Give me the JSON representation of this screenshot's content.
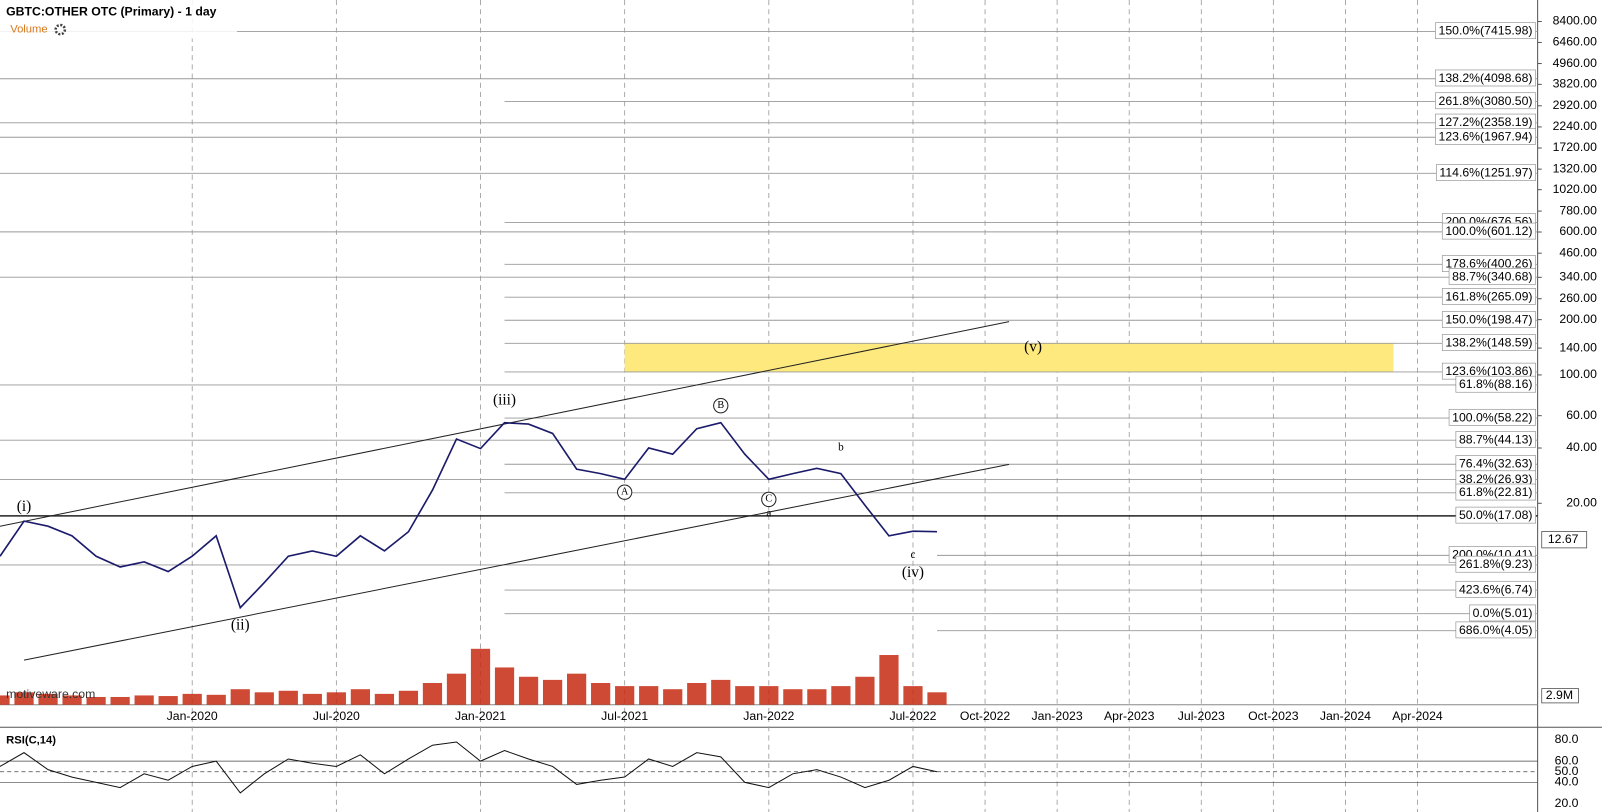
{
  "chart_data": {
    "type": "line",
    "title": "GBTC:OTHER OTC (Primary) - 1 day",
    "volume_label": "Volume",
    "watermark": "motiveware.com",
    "log_scale": true,
    "color": "#1b1b6b",
    "xlim": [
      "2019-05",
      "2024-09"
    ],
    "xticks": [
      {
        "value": "2020-01",
        "label": "Jan-2020"
      },
      {
        "value": "2020-07",
        "label": "Jul-2020"
      },
      {
        "value": "2021-01",
        "label": "Jan-2021"
      },
      {
        "value": "2021-07",
        "label": "Jul-2021"
      },
      {
        "value": "2022-01",
        "label": "Jan-2022"
      },
      {
        "value": "2022-07",
        "label": "Jul-2022"
      },
      {
        "value": "2022-10",
        "label": "Oct-2022"
      },
      {
        "value": "2023-01",
        "label": "Jan-2023"
      },
      {
        "value": "2023-04",
        "label": "Apr-2023"
      },
      {
        "value": "2023-07",
        "label": "Jul-2023"
      },
      {
        "value": "2023-10",
        "label": "Oct-2023"
      },
      {
        "value": "2024-01",
        "label": "Jan-2024"
      },
      {
        "value": "2024-04",
        "label": "Apr-2024"
      }
    ],
    "ylim": [
      1.6,
      11000
    ],
    "yticks": [
      {
        "value": 8400,
        "label": "8400.00"
      },
      {
        "value": 6460,
        "label": "6460.00"
      },
      {
        "value": 4960,
        "label": "4960.00"
      },
      {
        "value": 3820,
        "label": "3820.00"
      },
      {
        "value": 2920,
        "label": "2920.00"
      },
      {
        "value": 2240,
        "label": "2240.00"
      },
      {
        "value": 1720,
        "label": "1720.00"
      },
      {
        "value": 1320,
        "label": "1320.00"
      },
      {
        "value": 1020,
        "label": "1020.00"
      },
      {
        "value": 780,
        "label": "780.00"
      },
      {
        "value": 600,
        "label": "600.00"
      },
      {
        "value": 460,
        "label": "460.00"
      },
      {
        "value": 340,
        "label": "340.00"
      },
      {
        "value": 260,
        "label": "260.00"
      },
      {
        "value": 200,
        "label": "200.00"
      },
      {
        "value": 140,
        "label": "140.00"
      },
      {
        "value": 100,
        "label": "100.00"
      },
      {
        "value": 60,
        "label": "60.00"
      },
      {
        "value": 40,
        "label": "40.00"
      },
      {
        "value": 20,
        "label": "20.00"
      }
    ],
    "x": [
      "2019-05",
      "2019-06",
      "2019-07",
      "2019-08",
      "2019-09",
      "2019-10",
      "2019-11",
      "2019-12",
      "2020-01",
      "2020-02",
      "2020-03",
      "2020-04",
      "2020-05",
      "2020-06",
      "2020-07",
      "2020-08",
      "2020-09",
      "2020-10",
      "2020-11",
      "2020-12",
      "2021-01",
      "2021-02",
      "2021-03",
      "2021-04",
      "2021-05",
      "2021-06",
      "2021-07",
      "2021-08",
      "2021-09",
      "2021-10",
      "2021-11",
      "2021-12",
      "2022-01",
      "2022-02",
      "2022-03",
      "2022-04",
      "2022-05",
      "2022-06",
      "2022-07",
      "2022-08"
    ],
    "values": [
      10.3,
      16,
      15,
      13.3,
      10.3,
      9.0,
      9.6,
      8.5,
      10.3,
      13.3,
      5.4,
      7.4,
      10.3,
      11,
      10.3,
      13.3,
      11,
      14,
      23.6,
      44.8,
      39.7,
      54.9,
      54,
      48,
      30.7,
      29,
      27,
      40,
      37,
      51,
      55,
      37,
      27,
      29,
      31,
      29,
      19.5,
      13.3,
      14.1,
      14
    ],
    "last_price": 12.67,
    "levels": [
      {
        "value": 7415.98,
        "label": "150.0%(7415.98)"
      },
      {
        "value": 4098.68,
        "label": "138.2%(4098.68)"
      },
      {
        "value": 3080.5,
        "label": "261.8%(3080.50)"
      },
      {
        "value": 2358.19,
        "label": "127.2%(2358.19)"
      },
      {
        "value": 1967.94,
        "label": "123.6%(1967.94)"
      },
      {
        "value": 1251.97,
        "label": "114.6%(1251.97)"
      },
      {
        "value": 676.56,
        "label": "200.0%(676.56)"
      },
      {
        "value": 601.12,
        "label": "100.0%(601.12)"
      },
      {
        "value": 400.26,
        "label": "178.6%(400.26)"
      },
      {
        "value": 340.68,
        "label": "88.7%(340.68)"
      },
      {
        "value": 265.09,
        "label": "161.8%(265.09)"
      },
      {
        "value": 198.47,
        "label": "150.0%(198.47)"
      },
      {
        "value": 148.59,
        "label": "138.2%(148.59)"
      },
      {
        "value": 103.86,
        "label": "123.6%(103.86)"
      },
      {
        "value": 88.16,
        "label": "61.8%(88.16)"
      },
      {
        "value": 58.22,
        "label": "100.0%(58.22)"
      },
      {
        "value": 44.13,
        "label": "88.7%(44.13)"
      },
      {
        "value": 32.63,
        "label": "76.4%(32.63)"
      },
      {
        "value": 26.93,
        "label": "38.2%(26.93)"
      },
      {
        "value": 22.81,
        "label": "61.8%(22.81)"
      },
      {
        "value": 17.08,
        "label": "50.0%(17.08)"
      },
      {
        "value": 10.41,
        "label": "200.0%(10.41)"
      },
      {
        "value": 9.23,
        "label": "261.8%(9.23)"
      },
      {
        "value": 6.74,
        "label": "423.6%(6.74)"
      },
      {
        "value": 5.01,
        "label": "0.0%(5.01)"
      },
      {
        "value": 4.05,
        "label": "686.0%(4.05)"
      }
    ],
    "zone": {
      "low": 103.86,
      "high": 148.59,
      "x": [
        "2021-07",
        "2024-03"
      ],
      "color": "#fde97e"
    },
    "trendlines": [
      {
        "x": [
          "2019-05",
          "2022-11"
        ],
        "values": [
          15,
          195
        ]
      },
      {
        "x": [
          "2019-06",
          "2022-11"
        ],
        "values": [
          2.8,
          32.6
        ]
      }
    ],
    "wave_labels": [
      "(i)",
      "(ii)",
      "(iii)",
      "A",
      "B",
      "C",
      "a",
      "b",
      "c",
      "(iv)",
      "(v)"
    ],
    "volume": {
      "color": "#c62a12",
      "ylim": [
        0,
        23
      ],
      "yticks": [
        {
          "value": 2.9,
          "label": "2.9M"
        }
      ],
      "values": [
        3,
        4,
        3.5,
        3,
        2.5,
        2.5,
        3,
        2.8,
        3.5,
        3.2,
        5,
        4,
        4.5,
        3.5,
        4,
        5,
        3.5,
        4.5,
        7,
        10,
        18,
        12,
        9,
        8,
        10,
        7,
        6,
        6,
        5,
        7,
        8,
        6,
        6,
        5,
        5,
        6,
        9,
        16,
        6,
        4
      ]
    },
    "rsi": {
      "label": "RSI(C,14)",
      "color": "#111111",
      "ylim": [
        12,
        92
      ],
      "yticks": [
        {
          "value": 80,
          "label": "80.0"
        },
        {
          "value": 60,
          "label": "60.0"
        },
        {
          "value": 50,
          "label": "50.0"
        },
        {
          "value": 40,
          "label": "40.0"
        },
        {
          "value": 20,
          "label": "20.0"
        }
      ],
      "values": [
        55,
        68,
        52,
        45,
        40,
        35,
        48,
        42,
        55,
        60,
        30,
        48,
        62,
        58,
        55,
        66,
        48,
        62,
        75,
        78,
        60,
        70,
        62,
        55,
        38,
        42,
        45,
        62,
        55,
        68,
        64,
        40,
        35,
        48,
        52,
        45,
        35,
        42,
        55,
        50
      ]
    }
  }
}
